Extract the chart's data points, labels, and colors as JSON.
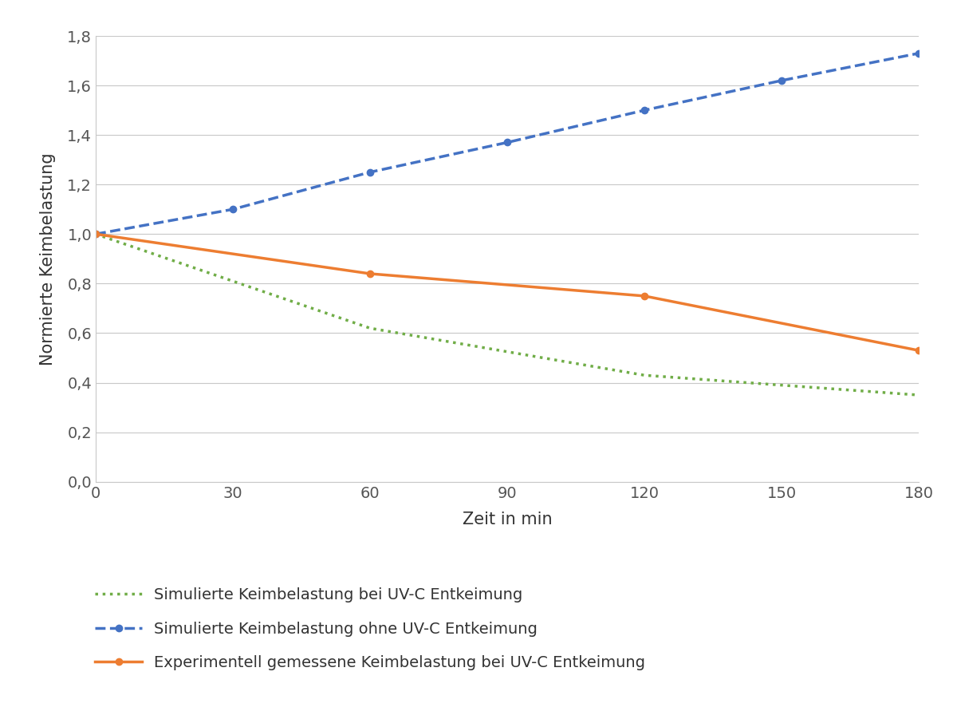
{
  "xlabel": "Zeit in min",
  "ylabel": "Normierte Keimbelastung",
  "xlim": [
    0,
    180
  ],
  "ylim": [
    0.0,
    1.8
  ],
  "xticks": [
    0,
    30,
    60,
    90,
    120,
    150,
    180
  ],
  "yticks": [
    0.0,
    0.2,
    0.4,
    0.6,
    0.8,
    1.0,
    1.2,
    1.4,
    1.6,
    1.8
  ],
  "ytick_labels": [
    "0,0",
    "0,2",
    "0,4",
    "0,6",
    "0,8",
    "1,0",
    "1,2",
    "1,4",
    "1,6",
    "1,8"
  ],
  "line1": {
    "x": [
      0,
      60,
      120,
      180
    ],
    "y": [
      1.0,
      0.62,
      0.43,
      0.35
    ],
    "color": "#70AD47",
    "linestyle": "dotted",
    "linewidth": 2.5,
    "label": "Simulierte Keimbelastung bei UV-C Entkeimung"
  },
  "line2": {
    "x": [
      0,
      30,
      60,
      90,
      120,
      150,
      180
    ],
    "y": [
      1.0,
      1.1,
      1.25,
      1.37,
      1.5,
      1.62,
      1.73
    ],
    "color": "#4472C4",
    "linestyle": "dashed",
    "linewidth": 2.5,
    "marker": "o",
    "markersize": 6,
    "label": "Simulierte Keimbelastung ohne UV-C Entkeimung"
  },
  "line3": {
    "x": [
      0,
      60,
      120,
      180
    ],
    "y": [
      1.0,
      0.84,
      0.75,
      0.53
    ],
    "color": "#ED7D31",
    "linestyle": "solid",
    "linewidth": 2.5,
    "marker": "o",
    "markersize": 6,
    "label": "Experimentell gemessene Keimbelastung bei UV-C Entkeimung"
  },
  "background_color": "#FFFFFF",
  "grid_color": "#C8C8C8",
  "tick_fontsize": 14,
  "label_fontsize": 15,
  "legend_fontsize": 14
}
